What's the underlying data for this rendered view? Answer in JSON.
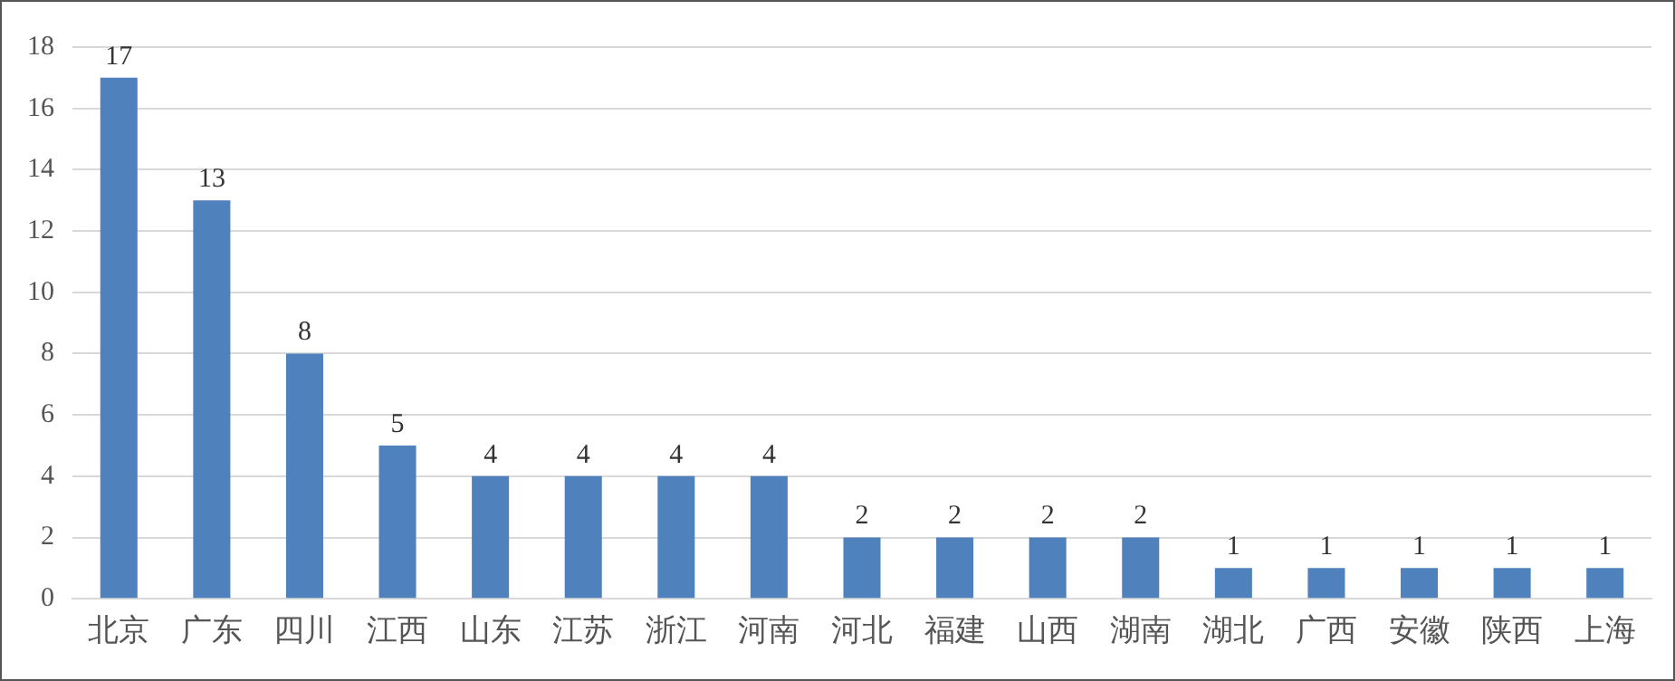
{
  "chart_data": {
    "type": "bar",
    "categories": [
      "北京",
      "广东",
      "四川",
      "江西",
      "山东",
      "江苏",
      "浙江",
      "河南",
      "河北",
      "福建",
      "山西",
      "湖南",
      "湖北",
      "广西",
      "安徽",
      "陕西",
      "上海"
    ],
    "values": [
      17,
      13,
      8,
      5,
      4,
      4,
      4,
      4,
      2,
      2,
      2,
      2,
      1,
      1,
      1,
      1,
      1
    ],
    "color": "#4f81bd",
    "ylim": [
      0,
      18
    ],
    "yticks": [
      0,
      2,
      4,
      6,
      8,
      10,
      12,
      14,
      16,
      18
    ],
    "grid": "y",
    "data_labels": true,
    "legend": false
  }
}
